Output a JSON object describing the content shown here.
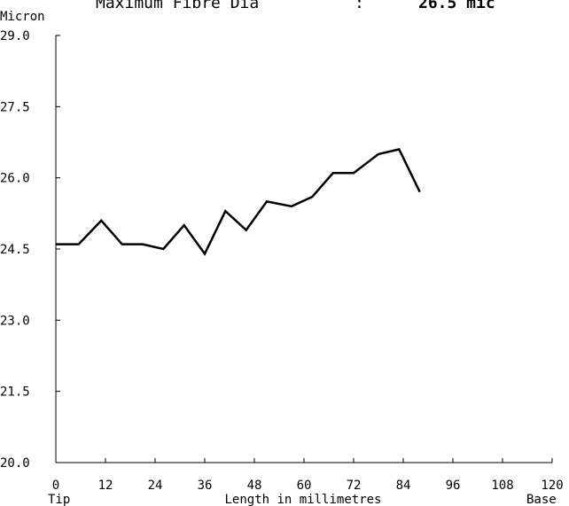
{
  "chart_data": {
    "type": "line",
    "title": "Maximum Fibre Dia",
    "title_separator": ":",
    "title_value": "26.5 mic",
    "ylabel": "Micron",
    "xlabel": "Length in millimetres",
    "x_left_label": "Tip",
    "x_right_label": "Base",
    "xlim": [
      0,
      120
    ],
    "ylim": [
      20.0,
      29.0
    ],
    "xticks": [
      "0",
      "12",
      "24",
      "36",
      "48",
      "60",
      "72",
      "84",
      "96",
      "108",
      "120"
    ],
    "yticks": [
      "29.0",
      "27.5",
      "26.0",
      "24.5",
      "23.0",
      "21.5",
      "20.0"
    ],
    "grid": false,
    "series": [
      {
        "x": [
          0,
          5.5,
          11,
          16,
          21,
          26,
          31,
          36,
          41,
          46,
          51,
          57,
          62,
          67,
          72,
          78,
          83,
          88
        ],
        "y": [
          24.6,
          24.6,
          25.1,
          24.6,
          24.6,
          24.5,
          25.0,
          24.4,
          25.3,
          24.9,
          25.5,
          25.4,
          25.6,
          26.1,
          26.1,
          26.5,
          26.6,
          25.7
        ]
      }
    ]
  }
}
